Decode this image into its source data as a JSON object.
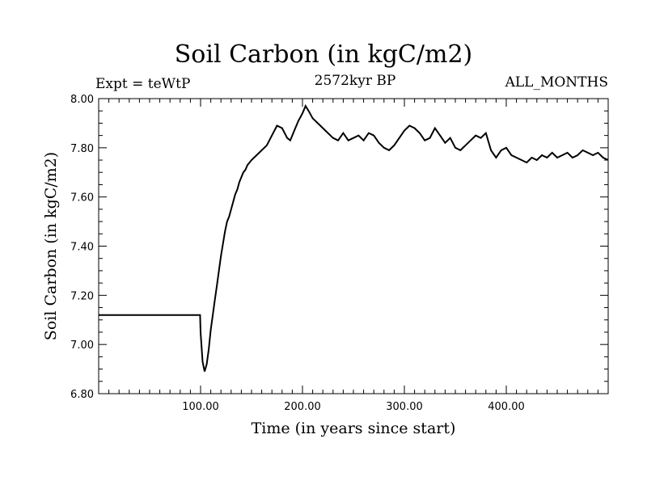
{
  "chart_data": {
    "type": "line",
    "title": "Soil Carbon (in kgC/m2)",
    "left_label": "Expt = teWtP",
    "center_label": "2572kyr BP",
    "right_label": "ALL_MONTHS",
    "xlabel": "Time (in years since start)",
    "ylabel": "Soil Carbon (in kgC/m2)",
    "xlim": [
      0,
      500
    ],
    "ylim": [
      6.8,
      8.0
    ],
    "x_ticks": [
      100,
      200,
      300,
      400
    ],
    "x_tick_labels": [
      "100.00",
      "200.00",
      "300.00",
      "400.00"
    ],
    "y_ticks": [
      6.8,
      7.0,
      7.2,
      7.4,
      7.6,
      7.8,
      8.0
    ],
    "y_tick_labels": [
      "6.80",
      "7.00",
      "7.20",
      "7.40",
      "7.60",
      "7.80",
      "8.00"
    ],
    "series": [
      {
        "name": "Soil Carbon",
        "x": [
          0,
          99.5,
          100,
          102,
          104,
          106,
          108,
          110,
          112,
          114,
          116,
          118,
          120,
          122,
          124,
          126,
          128,
          130,
          132,
          134,
          136,
          138,
          140,
          142,
          144,
          146,
          148,
          150,
          155,
          160,
          165,
          170,
          175,
          180,
          185,
          188,
          192,
          196,
          200,
          203,
          206,
          210,
          215,
          220,
          225,
          230,
          235,
          240,
          245,
          250,
          255,
          260,
          265,
          270,
          275,
          280,
          285,
          290,
          295,
          300,
          305,
          310,
          315,
          320,
          325,
          330,
          335,
          340,
          345,
          350,
          355,
          360,
          365,
          370,
          375,
          380,
          385,
          390,
          395,
          400,
          405,
          410,
          415,
          420,
          425,
          430,
          435,
          440,
          445,
          450,
          455,
          460,
          465,
          470,
          475,
          480,
          485,
          490,
          495,
          500
        ],
        "y": [
          7.12,
          7.12,
          7.05,
          6.93,
          6.89,
          6.92,
          6.98,
          7.06,
          7.12,
          7.18,
          7.24,
          7.3,
          7.36,
          7.41,
          7.46,
          7.5,
          7.52,
          7.55,
          7.58,
          7.61,
          7.63,
          7.66,
          7.68,
          7.7,
          7.71,
          7.73,
          7.74,
          7.75,
          7.77,
          7.79,
          7.81,
          7.85,
          7.89,
          7.88,
          7.84,
          7.83,
          7.87,
          7.91,
          7.94,
          7.97,
          7.95,
          7.92,
          7.9,
          7.88,
          7.86,
          7.84,
          7.83,
          7.86,
          7.83,
          7.84,
          7.85,
          7.83,
          7.86,
          7.85,
          7.82,
          7.8,
          7.79,
          7.81,
          7.84,
          7.87,
          7.89,
          7.88,
          7.86,
          7.83,
          7.84,
          7.88,
          7.85,
          7.82,
          7.84,
          7.8,
          7.79,
          7.81,
          7.83,
          7.85,
          7.84,
          7.86,
          7.79,
          7.76,
          7.79,
          7.8,
          7.77,
          7.76,
          7.75,
          7.74,
          7.76,
          7.75,
          7.77,
          7.76,
          7.78,
          7.76,
          7.77,
          7.78,
          7.76,
          7.77,
          7.79,
          7.78,
          7.77,
          7.78,
          7.76,
          7.75
        ]
      }
    ]
  }
}
